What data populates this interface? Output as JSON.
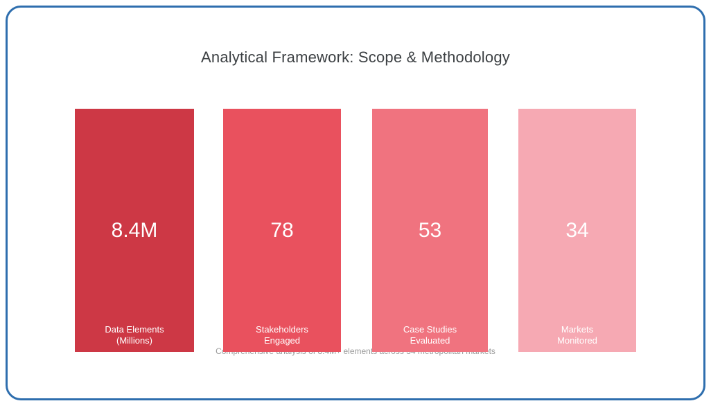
{
  "slide": {
    "title": "Analytical Framework: Scope & Methodology",
    "footnote": "Comprehensive analysis of 8.4M+ elements across 34 metropolitan markets",
    "border_color": "#2e6eae",
    "title_color": "#3c4043",
    "footnote_color": "#9a9a9a",
    "value_text_color": "#ffffff",
    "columns": [
      {
        "value": "8.4M",
        "label_line1": "Data Elements",
        "label_line2": "(Millions)",
        "color": "#cd3845"
      },
      {
        "value": "78",
        "label_line1": "Stakeholders",
        "label_line2": "Engaged",
        "color": "#e9515e"
      },
      {
        "value": "53",
        "label_line1": "Case Studies",
        "label_line2": "Evaluated",
        "color": "#f0737f"
      },
      {
        "value": "34",
        "label_line1": "Markets",
        "label_line2": "Monitored",
        "color": "#f6a9b3"
      }
    ]
  },
  "chart_data": {
    "type": "bar",
    "title": "Analytical Framework: Scope & Methodology",
    "categories": [
      "Data Elements (Millions)",
      "Stakeholders Engaged",
      "Case Studies Evaluated",
      "Markets Monitored"
    ],
    "values": [
      8.4,
      78,
      53,
      34
    ],
    "value_labels": [
      "8.4M",
      "78",
      "53",
      "34"
    ],
    "annotations": [
      "Comprehensive analysis of 8.4M+ elements across 34 metropolitan markets"
    ],
    "legend": false,
    "grid": false,
    "layout_hint": "equal-height stat columns; red shade lightens left to right (order, not magnitude)"
  }
}
